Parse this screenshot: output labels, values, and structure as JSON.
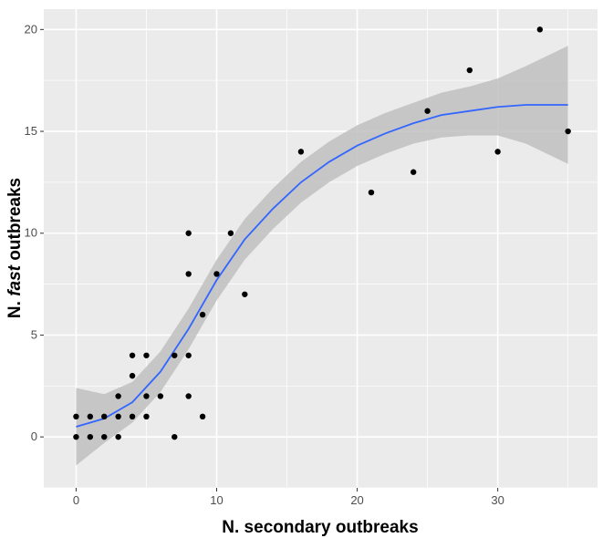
{
  "chart_data": {
    "type": "scatter",
    "xlabel": "N. secondary outbreaks",
    "ylabel_parts": [
      "N. ",
      "fast",
      " outbreaks"
    ],
    "xlim": [
      -2.3,
      37.1
    ],
    "ylim": [
      -2.5,
      21.0
    ],
    "xticks": [
      0,
      10,
      20,
      30
    ],
    "yticks": [
      0,
      5,
      10,
      15,
      20
    ],
    "grid": true,
    "points": [
      [
        0,
        0
      ],
      [
        0,
        1
      ],
      [
        1,
        0
      ],
      [
        1,
        1
      ],
      [
        2,
        0
      ],
      [
        2,
        1
      ],
      [
        3,
        0
      ],
      [
        3,
        1
      ],
      [
        3,
        2
      ],
      [
        4,
        1
      ],
      [
        4,
        3
      ],
      [
        4,
        4
      ],
      [
        5,
        1
      ],
      [
        5,
        2
      ],
      [
        5,
        4
      ],
      [
        6,
        2
      ],
      [
        7,
        0
      ],
      [
        7,
        4
      ],
      [
        8,
        2
      ],
      [
        8,
        4
      ],
      [
        8,
        8
      ],
      [
        8,
        10
      ],
      [
        9,
        1
      ],
      [
        9,
        6
      ],
      [
        10,
        8
      ],
      [
        11,
        10
      ],
      [
        12,
        7
      ],
      [
        16,
        14
      ],
      [
        21,
        12
      ],
      [
        24,
        13
      ],
      [
        25,
        16
      ],
      [
        28,
        18
      ],
      [
        30,
        14
      ],
      [
        33,
        20
      ],
      [
        35,
        15
      ]
    ],
    "smooth": {
      "method": "loess",
      "x": [
        0,
        2,
        4,
        6,
        8,
        10,
        12,
        14,
        16,
        18,
        20,
        22,
        24,
        26,
        28,
        30,
        32,
        35
      ],
      "y": [
        0.5,
        0.9,
        1.7,
        3.2,
        5.3,
        7.7,
        9.7,
        11.2,
        12.5,
        13.5,
        14.3,
        14.9,
        15.4,
        15.8,
        16.0,
        16.2,
        16.3,
        16.3
      ],
      "se": [
        1.9,
        1.2,
        1.0,
        1.0,
        1.0,
        1.0,
        1.0,
        1.0,
        1.0,
        1.0,
        1.0,
        1.0,
        1.0,
        1.1,
        1.2,
        1.4,
        1.9,
        2.9
      ]
    },
    "colors": {
      "panel": "#ebebeb",
      "grid": "#ffffff",
      "line": "#3366ff",
      "band": "#bfbfbf",
      "point": "#000000"
    }
  }
}
